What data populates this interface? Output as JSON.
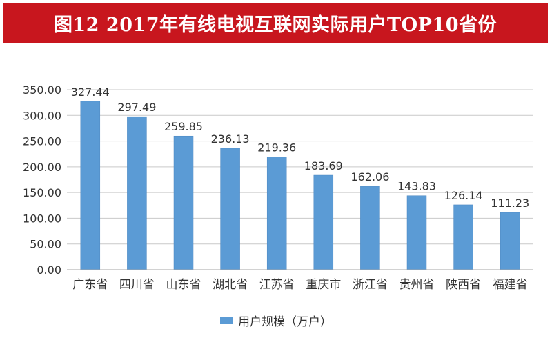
{
  "chart_data": {
    "type": "bar",
    "title": "图12  2017年有线电视互联网实际用户TOP10省份",
    "categories": [
      "广东省",
      "四川省",
      "山东省",
      "湖北省",
      "江苏省",
      "重庆市",
      "浙江省",
      "贵州省",
      "陕西省",
      "福建省"
    ],
    "series": [
      {
        "name": "用户规模（万户）",
        "values": [
          327.44,
          297.49,
          259.85,
          236.13,
          219.36,
          183.69,
          162.06,
          143.83,
          126.14,
          111.23
        ]
      }
    ],
    "value_labels": [
      "327.44",
      "297.49",
      "259.85",
      "236.13",
      "219.36",
      "183.69",
      "162.06",
      "143.83",
      "126.14",
      "111.23"
    ],
    "y_ticks": [
      0,
      50,
      100,
      150,
      200,
      250,
      300,
      350
    ],
    "y_tick_labels": [
      "0.00",
      "50.00",
      "100.00",
      "150.00",
      "200.00",
      "250.00",
      "300.00",
      "350.00"
    ],
    "ylim": [
      0,
      350
    ],
    "xlabel": "",
    "ylabel": "",
    "grid": true,
    "legend_position": "bottom"
  },
  "colors": {
    "title_bg": "#c8161e",
    "bar": "#5b9bd5",
    "bar_edge": "#4a86c0",
    "grid": "#c9c9c9",
    "axis": "#a6a6a6",
    "text": "#333333"
  }
}
